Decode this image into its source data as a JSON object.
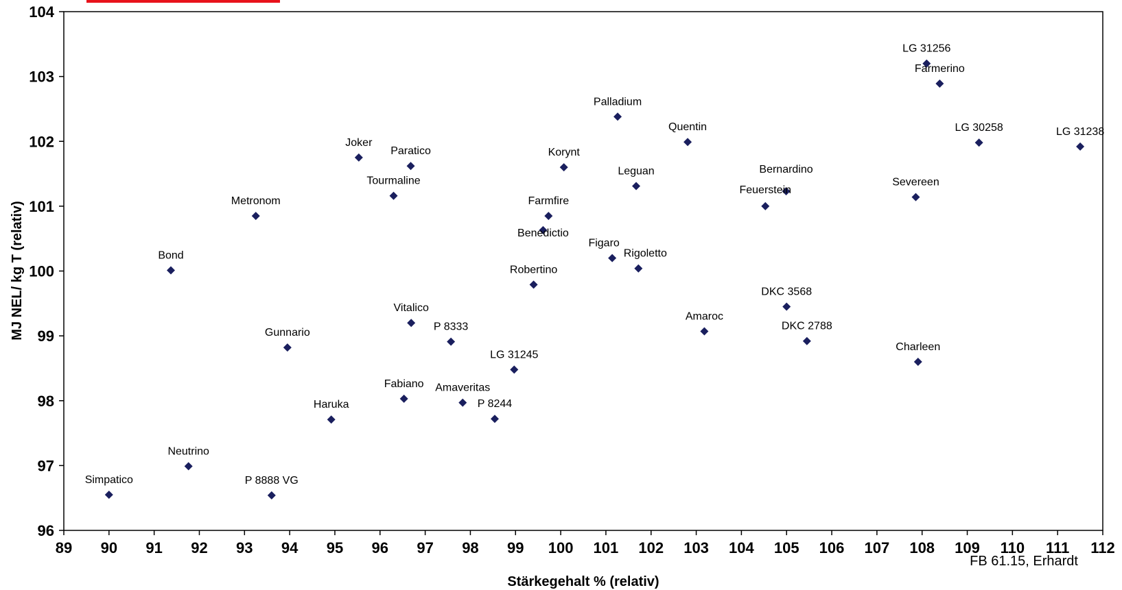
{
  "chart_data": {
    "type": "scatter",
    "xlabel": "Stärkegehalt % (relativ)",
    "ylabel": "MJ NEL/ kg T (relativ)",
    "xlim": [
      89,
      112
    ],
    "ylim": [
      96,
      104
    ],
    "x_ticks": [
      89,
      90,
      91,
      92,
      93,
      94,
      95,
      96,
      97,
      98,
      99,
      100,
      101,
      102,
      103,
      104,
      105,
      106,
      107,
      108,
      109,
      110,
      111,
      112
    ],
    "y_ticks": [
      96,
      97,
      98,
      99,
      100,
      101,
      102,
      103,
      104
    ],
    "grid": false,
    "marker": "diamond",
    "marker_color": "#1a1f5e",
    "points": [
      {
        "label": "Simpatico",
        "x": 90.0,
        "y": 96.55
      },
      {
        "label": "Neutrino",
        "x": 91.76,
        "y": 96.99
      },
      {
        "label": "P 8888 VG",
        "x": 93.6,
        "y": 96.54
      },
      {
        "label": "Bond",
        "x": 91.37,
        "y": 100.01
      },
      {
        "label": "Metronom",
        "x": 93.25,
        "y": 100.85
      },
      {
        "label": "Gunnario",
        "x": 93.95,
        "y": 98.82
      },
      {
        "label": "Haruka",
        "x": 94.92,
        "y": 97.71
      },
      {
        "label": "Joker",
        "x": 95.53,
        "y": 101.75
      },
      {
        "label": "Tourmaline",
        "x": 96.3,
        "y": 101.16
      },
      {
        "label": "Paratico",
        "x": 96.68,
        "y": 101.62
      },
      {
        "label": "Vitalico",
        "x": 96.69,
        "y": 99.2
      },
      {
        "label": "Fabiano",
        "x": 96.53,
        "y": 98.03
      },
      {
        "label": "P 8333",
        "x": 97.57,
        "y": 98.91
      },
      {
        "label": "Amaveritas",
        "x": 97.83,
        "y": 97.97
      },
      {
        "label": "P 8244",
        "x": 98.54,
        "y": 97.72
      },
      {
        "label": "LG 31245",
        "x": 98.97,
        "y": 98.48
      },
      {
        "label": "Robertino",
        "x": 99.4,
        "y": 99.79
      },
      {
        "label": "Benedictio",
        "x": 99.61,
        "y": 100.63
      },
      {
        "label": "Farmfire",
        "x": 99.73,
        "y": 100.85
      },
      {
        "label": "Korynt",
        "x": 100.07,
        "y": 101.6
      },
      {
        "label": "Figaro",
        "x": 101.14,
        "y": 100.2
      },
      {
        "label": "Rigoletto",
        "x": 101.72,
        "y": 100.04
      },
      {
        "label": "Palladium",
        "x": 101.26,
        "y": 102.38
      },
      {
        "label": "Leguan",
        "x": 101.67,
        "y": 101.31
      },
      {
        "label": "Quentin",
        "x": 102.81,
        "y": 101.99
      },
      {
        "label": "Amaroc",
        "x": 103.18,
        "y": 99.07
      },
      {
        "label": "Feuerstein",
        "x": 104.53,
        "y": 101.0
      },
      {
        "label": "Bernardino",
        "x": 104.99,
        "y": 101.23
      },
      {
        "label": "DKC 3568",
        "x": 105.0,
        "y": 99.45
      },
      {
        "label": "DKC 2788",
        "x": 105.45,
        "y": 98.92
      },
      {
        "label": "Severeen",
        "x": 107.86,
        "y": 101.14
      },
      {
        "label": "Charleen",
        "x": 107.91,
        "y": 98.6
      },
      {
        "label": "LG 31256",
        "x": 108.1,
        "y": 103.2
      },
      {
        "label": "Farmerino",
        "x": 108.39,
        "y": 102.89
      },
      {
        "label": "LG 30258",
        "x": 109.26,
        "y": 101.98
      },
      {
        "label": "LG 31238",
        "x": 111.5,
        "y": 101.92
      }
    ]
  },
  "source_note": "FB 61.15, Erhardt",
  "accent_color": "#e8121b"
}
